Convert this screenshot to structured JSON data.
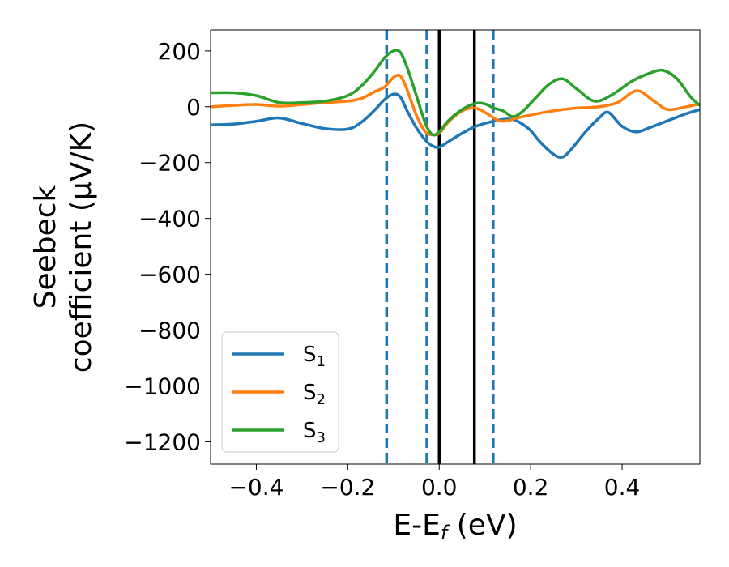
{
  "chart_data": {
    "type": "line",
    "title": "",
    "xlabel": "E-E",
    "xlabel_sub": "f",
    "xlabel_unit": " (eV)",
    "ylabel_line1": "Seebeck",
    "ylabel_line2": "coefficient  (μV/K)",
    "xlim": [
      -0.5,
      0.57
    ],
    "ylim": [
      -1280,
      275
    ],
    "xticks": [
      -0.4,
      -0.2,
      0.0,
      0.2,
      0.4
    ],
    "xtick_labels": [
      "−0.4",
      "−0.2",
      "0.0",
      "0.2",
      "0.4"
    ],
    "yticks": [
      200,
      0,
      -200,
      -400,
      -600,
      -800,
      -1000,
      -1200
    ],
    "ytick_labels": [
      "200",
      "0",
      "−200",
      "−400",
      "−600",
      "−800",
      "−1000",
      "−1200"
    ],
    "vlines": [
      {
        "x": -0.115,
        "style": "dashed",
        "color": "#1f77b4"
      },
      {
        "x": -0.027,
        "style": "dashed",
        "color": "#1f77b4"
      },
      {
        "x": 0.0,
        "style": "solid",
        "color": "#000000"
      },
      {
        "x": 0.077,
        "style": "solid",
        "color": "#000000"
      },
      {
        "x": 0.118,
        "style": "dashed",
        "color": "#1f77b4"
      }
    ],
    "legend_position": "lower-left",
    "series": [
      {
        "name": "S",
        "sub": "1",
        "color": "#1f77b4",
        "x": [
          -0.5,
          -0.45,
          -0.4,
          -0.35,
          -0.3,
          -0.25,
          -0.2,
          -0.17,
          -0.14,
          -0.12,
          -0.1,
          -0.085,
          -0.07,
          -0.05,
          -0.03,
          -0.015,
          0.0,
          0.02,
          0.05,
          0.08,
          0.11,
          0.14,
          0.16,
          0.18,
          0.2,
          0.22,
          0.25,
          0.27,
          0.29,
          0.32,
          0.35,
          0.37,
          0.4,
          0.43,
          0.46,
          0.5,
          0.54,
          0.57
        ],
        "y": [
          -65,
          -62,
          -52,
          -40,
          -60,
          -78,
          -80,
          -55,
          -10,
          25,
          45,
          35,
          -15,
          -75,
          -120,
          -140,
          -145,
          -125,
          -95,
          -70,
          -55,
          -45,
          -45,
          -60,
          -85,
          -125,
          -170,
          -180,
          -150,
          -90,
          -40,
          -20,
          -70,
          -90,
          -75,
          -50,
          -25,
          -10
        ]
      },
      {
        "name": "S",
        "sub": "2",
        "color": "#ff7f0e",
        "x": [
          -0.5,
          -0.45,
          -0.4,
          -0.35,
          -0.3,
          -0.25,
          -0.2,
          -0.17,
          -0.14,
          -0.12,
          -0.1,
          -0.085,
          -0.07,
          -0.05,
          -0.03,
          -0.015,
          0.0,
          0.02,
          0.05,
          0.08,
          0.11,
          0.13,
          0.15,
          0.17,
          0.2,
          0.23,
          0.27,
          0.3,
          0.35,
          0.39,
          0.42,
          0.44,
          0.47,
          0.5,
          0.54,
          0.57
        ],
        "y": [
          0,
          5,
          8,
          2,
          8,
          15,
          20,
          30,
          55,
          70,
          105,
          110,
          60,
          -30,
          -90,
          -100,
          -95,
          -55,
          -15,
          -5,
          -30,
          -50,
          -50,
          -40,
          -30,
          -20,
          -10,
          -5,
          0,
          15,
          50,
          55,
          20,
          -10,
          0,
          10
        ]
      },
      {
        "name": "S",
        "sub": "3",
        "color": "#2ca02c",
        "x": [
          -0.5,
          -0.45,
          -0.4,
          -0.35,
          -0.3,
          -0.25,
          -0.2,
          -0.17,
          -0.14,
          -0.12,
          -0.1,
          -0.085,
          -0.07,
          -0.05,
          -0.03,
          -0.015,
          0.0,
          0.02,
          0.05,
          0.08,
          0.1,
          0.12,
          0.14,
          0.16,
          0.18,
          0.21,
          0.24,
          0.27,
          0.3,
          0.34,
          0.38,
          0.42,
          0.46,
          0.49,
          0.52,
          0.55,
          0.57
        ],
        "y": [
          50,
          50,
          40,
          15,
          15,
          20,
          40,
          75,
          130,
          175,
          200,
          195,
          140,
          40,
          -60,
          -100,
          -90,
          -50,
          -10,
          12,
          10,
          -5,
          -15,
          -35,
          -20,
          30,
          80,
          100,
          65,
          20,
          45,
          90,
          120,
          130,
          100,
          35,
          5
        ]
      }
    ]
  }
}
